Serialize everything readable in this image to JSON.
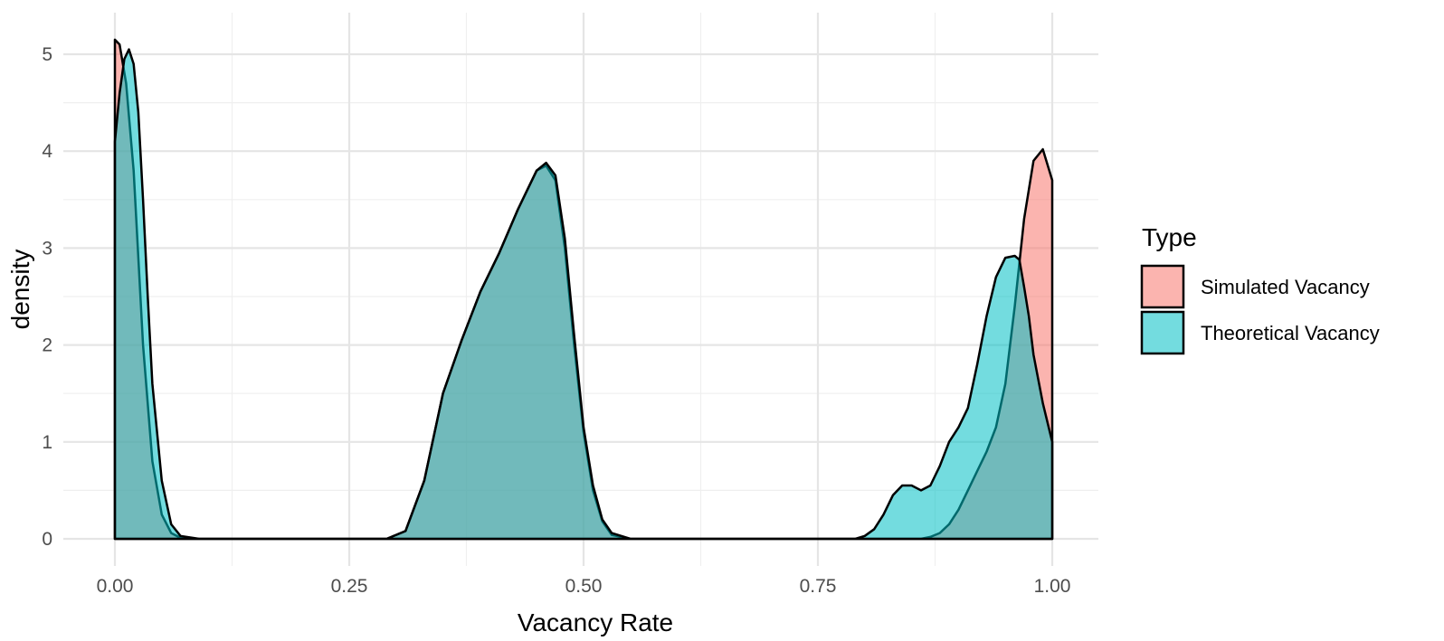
{
  "chart_data": {
    "type": "area",
    "xlabel": "Vacancy Rate",
    "ylabel": "density",
    "xlim": [
      0,
      1
    ],
    "ylim": [
      0,
      5.15
    ],
    "x_ticks": [
      0,
      0.25,
      0.5,
      0.75,
      1
    ],
    "x_tick_labels": [
      "0.00",
      "0.25",
      "0.50",
      "0.75",
      "1.00"
    ],
    "y_ticks": [
      0,
      1,
      2,
      3,
      4,
      5
    ],
    "y_tick_labels": [
      "0",
      "1",
      "2",
      "3",
      "4",
      "5"
    ],
    "grid": true,
    "legend": {
      "title": "Type",
      "position": "right",
      "entries": [
        "Simulated Vacancy",
        "Theoretical Vacancy"
      ]
    },
    "series": [
      {
        "name": "Simulated Vacancy",
        "color": "#F8766D",
        "points": [
          [
            0,
            5.15
          ],
          [
            0.005,
            5.1
          ],
          [
            0.012,
            4.7
          ],
          [
            0.02,
            3.8
          ],
          [
            0.03,
            2.0
          ],
          [
            0.04,
            0.8
          ],
          [
            0.05,
            0.25
          ],
          [
            0.06,
            0.06
          ],
          [
            0.07,
            0.01
          ],
          [
            0.08,
            0.0
          ],
          [
            0.29,
            0.0
          ],
          [
            0.31,
            0.08
          ],
          [
            0.33,
            0.6
          ],
          [
            0.35,
            1.5
          ],
          [
            0.37,
            2.05
          ],
          [
            0.39,
            2.55
          ],
          [
            0.41,
            2.95
          ],
          [
            0.43,
            3.4
          ],
          [
            0.45,
            3.8
          ],
          [
            0.46,
            3.85
          ],
          [
            0.47,
            3.7
          ],
          [
            0.48,
            3.0
          ],
          [
            0.49,
            2.0
          ],
          [
            0.5,
            1.1
          ],
          [
            0.51,
            0.5
          ],
          [
            0.52,
            0.18
          ],
          [
            0.53,
            0.04
          ],
          [
            0.55,
            0.0
          ],
          [
            0.86,
            0.0
          ],
          [
            0.87,
            0.02
          ],
          [
            0.88,
            0.06
          ],
          [
            0.89,
            0.15
          ],
          [
            0.9,
            0.3
          ],
          [
            0.91,
            0.5
          ],
          [
            0.92,
            0.7
          ],
          [
            0.93,
            0.9
          ],
          [
            0.94,
            1.15
          ],
          [
            0.95,
            1.6
          ],
          [
            0.96,
            2.4
          ],
          [
            0.97,
            3.3
          ],
          [
            0.98,
            3.9
          ],
          [
            0.99,
            4.02
          ],
          [
            1.0,
            3.7
          ]
        ]
      },
      {
        "name": "Theoretical Vacancy",
        "color": "#00BFC4",
        "points": [
          [
            0,
            4.1
          ],
          [
            0.005,
            4.6
          ],
          [
            0.01,
            4.95
          ],
          [
            0.015,
            5.05
          ],
          [
            0.02,
            4.9
          ],
          [
            0.025,
            4.4
          ],
          [
            0.03,
            3.5
          ],
          [
            0.035,
            2.5
          ],
          [
            0.04,
            1.6
          ],
          [
            0.05,
            0.6
          ],
          [
            0.06,
            0.15
          ],
          [
            0.07,
            0.03
          ],
          [
            0.09,
            0.0
          ],
          [
            0.29,
            0.0
          ],
          [
            0.31,
            0.08
          ],
          [
            0.33,
            0.6
          ],
          [
            0.35,
            1.5
          ],
          [
            0.37,
            2.05
          ],
          [
            0.39,
            2.55
          ],
          [
            0.41,
            2.95
          ],
          [
            0.43,
            3.4
          ],
          [
            0.45,
            3.8
          ],
          [
            0.46,
            3.88
          ],
          [
            0.47,
            3.75
          ],
          [
            0.48,
            3.1
          ],
          [
            0.49,
            2.1
          ],
          [
            0.5,
            1.15
          ],
          [
            0.51,
            0.55
          ],
          [
            0.52,
            0.2
          ],
          [
            0.53,
            0.06
          ],
          [
            0.55,
            0.0
          ],
          [
            0.79,
            0.0
          ],
          [
            0.8,
            0.03
          ],
          [
            0.81,
            0.1
          ],
          [
            0.82,
            0.25
          ],
          [
            0.83,
            0.45
          ],
          [
            0.84,
            0.55
          ],
          [
            0.85,
            0.55
          ],
          [
            0.86,
            0.5
          ],
          [
            0.87,
            0.55
          ],
          [
            0.88,
            0.75
          ],
          [
            0.89,
            1.0
          ],
          [
            0.9,
            1.15
          ],
          [
            0.91,
            1.35
          ],
          [
            0.92,
            1.8
          ],
          [
            0.93,
            2.3
          ],
          [
            0.94,
            2.7
          ],
          [
            0.95,
            2.9
          ],
          [
            0.96,
            2.92
          ],
          [
            0.965,
            2.88
          ],
          [
            0.97,
            2.6
          ],
          [
            0.975,
            2.3
          ],
          [
            0.98,
            1.9
          ],
          [
            0.99,
            1.4
          ],
          [
            1.0,
            1.0
          ]
        ]
      }
    ]
  }
}
